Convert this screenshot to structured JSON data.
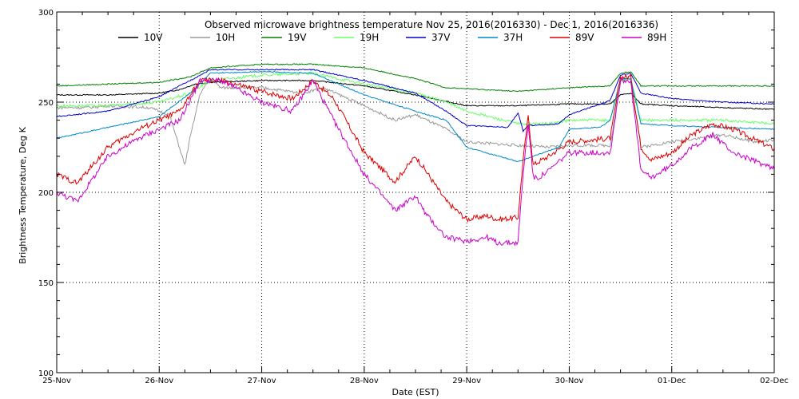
{
  "chart_data": {
    "type": "line",
    "title": "Observed microwave brightness temperature Nov 25, 2016(2016330) - Dec  1, 2016(2016336)",
    "xlabel": "Date (EST)",
    "ylabel": "Brightness Temperature, Deg K",
    "x_unit": "days",
    "x_ticks": [
      "25-Nov",
      "26-Nov",
      "27-Nov",
      "28-Nov",
      "29-Nov",
      "30-Nov",
      "01-Dec",
      "02-Dec"
    ],
    "xlim": [
      0,
      7
    ],
    "ylim": [
      100,
      300
    ],
    "y_ticks": [
      100,
      150,
      200,
      250,
      300
    ],
    "grid": true,
    "legend_position": "top",
    "series": [
      {
        "name": "10V",
        "color": "#000000",
        "x": [
          0,
          0.5,
          1.0,
          1.2,
          1.35,
          1.5,
          2.0,
          2.5,
          3.0,
          3.5,
          4.0,
          4.5,
          5.0,
          5.4,
          5.5,
          5.6,
          5.7,
          6.0,
          6.5,
          7.0
        ],
        "y": [
          254,
          254,
          255,
          257,
          260,
          261,
          262,
          262,
          259,
          254,
          248,
          248,
          249,
          249,
          254,
          255,
          249,
          248,
          247,
          246
        ]
      },
      {
        "name": "10H",
        "color": "#999999",
        "x": [
          0,
          0.3,
          0.5,
          0.9,
          1.1,
          1.25,
          1.3,
          1.4,
          1.5,
          1.6,
          2.0,
          2.4,
          2.6,
          3.0,
          3.3,
          3.5,
          3.8,
          4.0,
          4.5,
          4.8,
          5.0,
          5.4,
          5.5,
          5.6,
          5.7,
          6.0,
          6.5,
          6.8,
          7.0
        ],
        "y": [
          247,
          247,
          248,
          247,
          243,
          215,
          230,
          255,
          263,
          258,
          258,
          255,
          258,
          248,
          240,
          243,
          235,
          228,
          226,
          225,
          226,
          226,
          262,
          263,
          225,
          228,
          232,
          228,
          229
        ]
      },
      {
        "name": "19V",
        "color": "#008000",
        "x": [
          0,
          0.5,
          1.0,
          1.3,
          1.5,
          2.0,
          2.5,
          3.0,
          3.5,
          3.8,
          4.5,
          5.0,
          5.4,
          5.5,
          5.6,
          5.7,
          6.0,
          6.5,
          7.0
        ],
        "y": [
          259,
          260,
          261,
          264,
          269,
          271,
          271,
          269,
          263,
          258,
          256,
          258,
          259,
          266,
          267,
          259,
          259,
          259,
          259
        ]
      },
      {
        "name": "19H",
        "color": "#66ff66",
        "x": [
          0,
          0.5,
          1.0,
          1.3,
          1.5,
          2.0,
          2.5,
          3.0,
          3.5,
          3.8,
          4.0,
          4.5,
          4.8,
          5.0,
          5.3,
          5.4,
          5.5,
          5.6,
          5.7,
          6.0,
          6.5,
          7.0
        ],
        "y": [
          248,
          248,
          250,
          255,
          262,
          265,
          266,
          260,
          255,
          250,
          245,
          238,
          238,
          240,
          240,
          240,
          262,
          263,
          240,
          240,
          240,
          238
        ]
      },
      {
        "name": "37V",
        "color": "#0000cc",
        "x": [
          0,
          0.5,
          1.0,
          1.3,
          1.5,
          2.0,
          2.5,
          3.0,
          3.5,
          3.8,
          4.0,
          4.4,
          4.5,
          4.55,
          4.6,
          4.9,
          5.0,
          5.4,
          5.5,
          5.6,
          5.7,
          6.0,
          6.5,
          7.0
        ],
        "y": [
          242,
          245,
          253,
          262,
          268,
          268,
          268,
          262,
          255,
          245,
          237,
          236,
          244,
          234,
          237,
          238,
          243,
          251,
          265,
          266,
          255,
          252,
          250,
          249
        ]
      },
      {
        "name": "37H",
        "color": "#0088cc",
        "x": [
          0,
          0.5,
          1.0,
          1.3,
          1.5,
          2.0,
          2.5,
          3.0,
          3.5,
          3.8,
          4.0,
          4.5,
          4.9,
          5.0,
          5.3,
          5.4,
          5.5,
          5.6,
          5.7,
          6.0,
          6.5,
          7.0
        ],
        "y": [
          230,
          236,
          242,
          255,
          266,
          267,
          266,
          254,
          245,
          240,
          225,
          217,
          225,
          235,
          236,
          240,
          263,
          263,
          238,
          237,
          236,
          235
        ]
      },
      {
        "name": "89V",
        "color": "#dd0000",
        "x": [
          0,
          0.2,
          0.5,
          0.8,
          1.0,
          1.2,
          1.4,
          1.6,
          2.0,
          2.3,
          2.5,
          2.7,
          3.0,
          3.3,
          3.5,
          3.6,
          3.8,
          4.0,
          4.2,
          4.3,
          4.5,
          4.55,
          4.6,
          4.65,
          4.7,
          4.8,
          5.0,
          5.4,
          5.5,
          5.6,
          5.7,
          5.8,
          6.0,
          6.2,
          6.4,
          6.6,
          7.0
        ],
        "y": [
          210,
          205,
          225,
          235,
          240,
          245,
          262,
          262,
          256,
          252,
          262,
          252,
          222,
          206,
          220,
          212,
          195,
          185,
          187,
          185,
          186,
          218,
          242,
          215,
          217,
          220,
          228,
          230,
          264,
          264,
          225,
          218,
          222,
          232,
          238,
          235,
          224
        ]
      },
      {
        "name": "89H",
        "color": "#cc00cc",
        "x": [
          0,
          0.2,
          0.5,
          0.8,
          1.0,
          1.2,
          1.4,
          1.6,
          2.0,
          2.3,
          2.5,
          2.7,
          3.0,
          3.3,
          3.5,
          3.6,
          3.8,
          4.0,
          4.2,
          4.3,
          4.5,
          4.55,
          4.6,
          4.65,
          4.7,
          4.8,
          5.0,
          5.4,
          5.5,
          5.6,
          5.7,
          5.8,
          6.0,
          6.2,
          6.4,
          6.6,
          7.0
        ],
        "y": [
          200,
          195,
          220,
          230,
          235,
          240,
          262,
          262,
          250,
          245,
          262,
          240,
          210,
          190,
          198,
          188,
          175,
          173,
          175,
          172,
          172,
          210,
          238,
          208,
          208,
          212,
          222,
          222,
          262,
          262,
          212,
          208,
          215,
          225,
          232,
          222,
          213
        ]
      }
    ]
  }
}
